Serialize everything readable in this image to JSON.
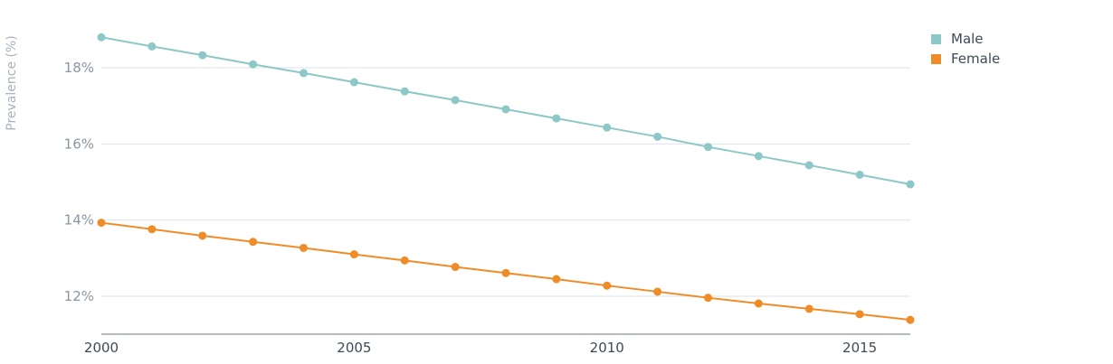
{
  "chart_data": {
    "type": "line",
    "title": "",
    "xlabel": "",
    "ylabel": "Prevalence (%)",
    "x": [
      2000,
      2001,
      2002,
      2003,
      2004,
      2005,
      2006,
      2007,
      2008,
      2009,
      2010,
      2011,
      2012,
      2013,
      2014,
      2015,
      2016
    ],
    "xticks": [
      "2000",
      "2005",
      "2010",
      "2015"
    ],
    "yticks": [
      "12%",
      "14%",
      "16%",
      "18%"
    ],
    "ylim": [
      11,
      19
    ],
    "xlim": [
      2000,
      2016
    ],
    "grid": "horizontal",
    "legend_position": "top-right",
    "series": [
      {
        "name": "Male",
        "color": "#8cc8c8",
        "values": [
          18.8,
          18.56,
          18.33,
          18.09,
          17.86,
          17.62,
          17.38,
          17.15,
          16.91,
          16.67,
          16.43,
          16.19,
          15.92,
          15.68,
          15.44,
          15.19,
          14.94
        ]
      },
      {
        "name": "Female",
        "color": "#f08c28",
        "values": [
          13.93,
          13.76,
          13.59,
          13.43,
          13.27,
          13.1,
          12.94,
          12.77,
          12.61,
          12.45,
          12.28,
          12.12,
          11.96,
          11.81,
          11.67,
          11.53,
          11.38
        ]
      }
    ]
  }
}
